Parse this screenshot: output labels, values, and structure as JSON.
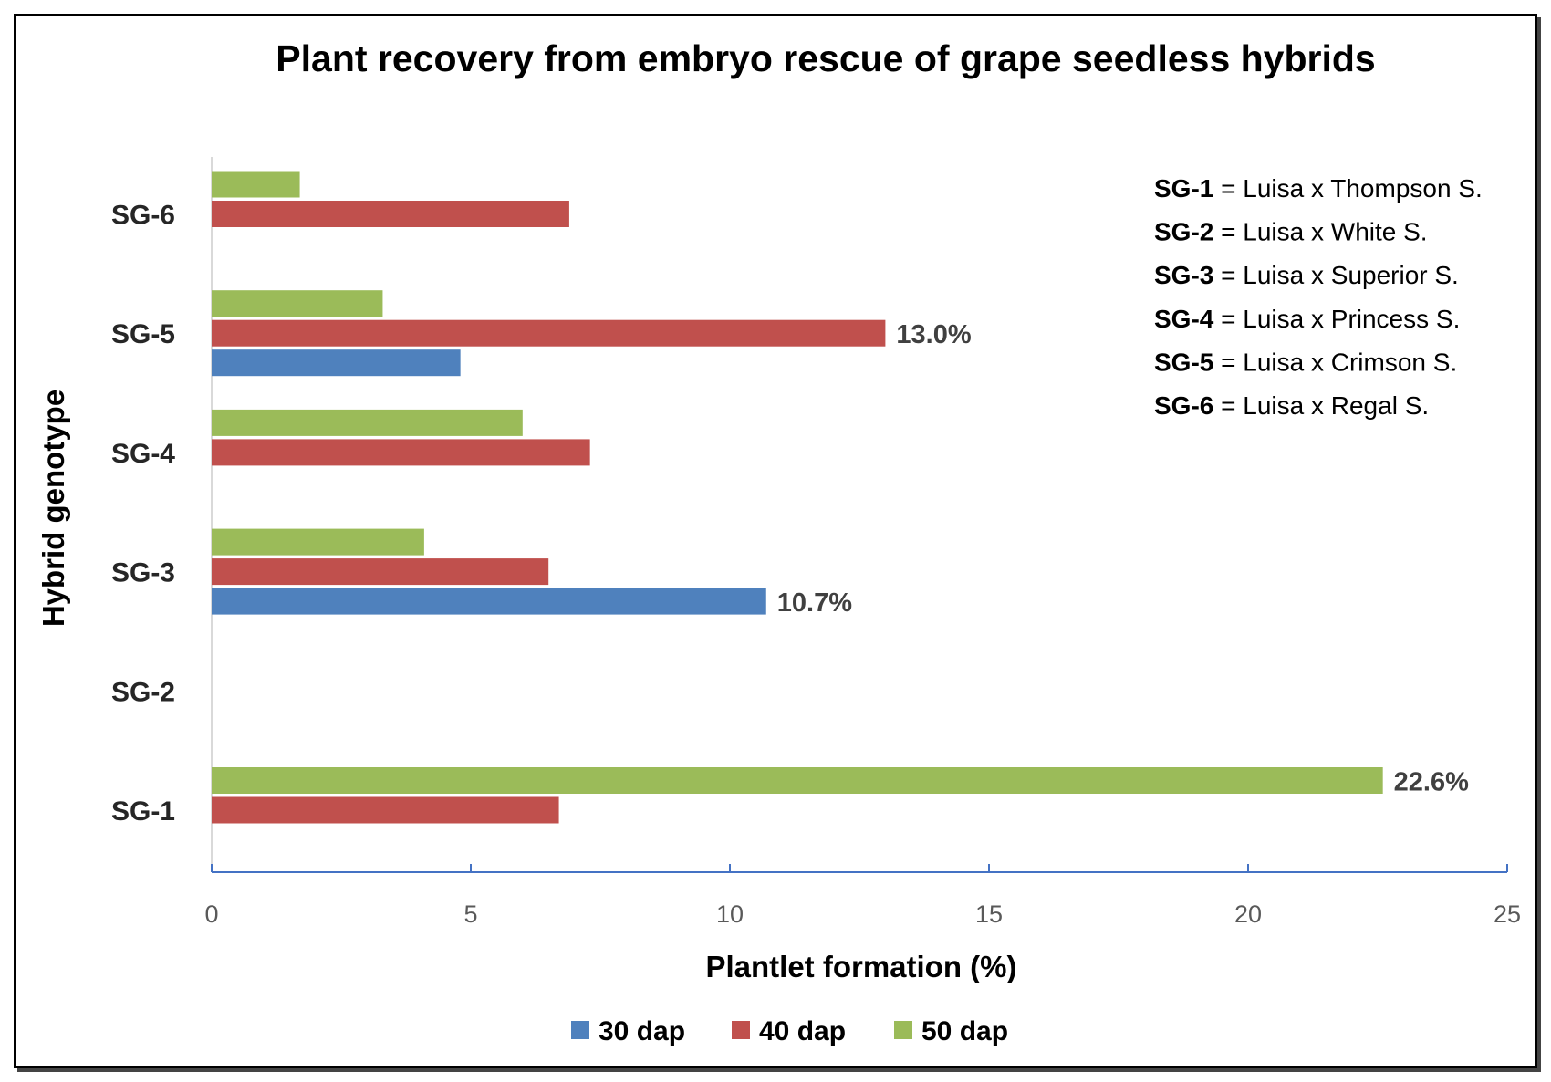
{
  "chart_data": {
    "type": "bar",
    "orientation": "horizontal",
    "title": "Plant recovery from embryo rescue of grape seedless hybrids",
    "xlabel": "Plantlet formation (%)",
    "ylabel": "Hybrid genotype",
    "xlim": [
      0,
      25
    ],
    "xticks": [
      0,
      5,
      10,
      15,
      20,
      25
    ],
    "grid": false,
    "legend_position": "bottom",
    "categories": [
      "SG-1",
      "SG-2",
      "SG-3",
      "SG-4",
      "SG-5",
      "SG-6"
    ],
    "series": [
      {
        "name": "30 dap",
        "color": "#4F81BD",
        "values": [
          0,
          0,
          10.7,
          0,
          4.8,
          0
        ]
      },
      {
        "name": "40 dap",
        "color": "#C0504D",
        "values": [
          6.7,
          0,
          6.5,
          7.3,
          13.0,
          6.9
        ]
      },
      {
        "name": "50 dap",
        "color": "#9BBB59",
        "values": [
          22.6,
          0,
          4.1,
          6.0,
          3.3,
          1.7
        ]
      }
    ],
    "data_labels": [
      {
        "category": "SG-5",
        "series": "40 dap",
        "text": "13.0%"
      },
      {
        "category": "SG-3",
        "series": "30 dap",
        "text": "10.7%"
      },
      {
        "category": "SG-1",
        "series": "50 dap",
        "text": "22.6%"
      }
    ],
    "annotation_key": [
      {
        "code": "SG-1",
        "desc": " = Luisa x Thompson S."
      },
      {
        "code": "SG-2",
        "desc": " = Luisa x White S."
      },
      {
        "code": "SG-3",
        "desc": " = Luisa x Superior S."
      },
      {
        "code": "SG-4",
        "desc": " = Luisa x Princess S."
      },
      {
        "code": "SG-5",
        "desc": " = Luisa x Crimson S."
      },
      {
        "code": "SG-6",
        "desc": " = Luisa x Regal S."
      }
    ],
    "axis_color": "#4472C4"
  }
}
